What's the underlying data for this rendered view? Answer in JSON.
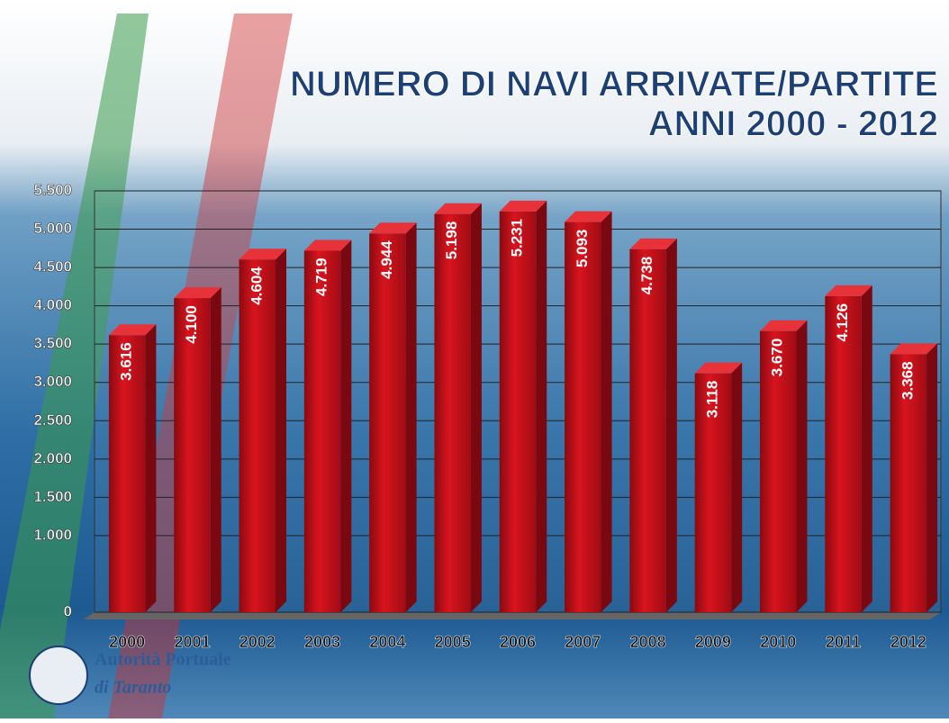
{
  "chart_data": {
    "type": "bar",
    "title": "NUMERO DI NAVI ARRIVATE/PARTITE",
    "subtitle": "ANNI 2000 - 2012",
    "categories": [
      "2000",
      "2001",
      "2002",
      "2003",
      "2004",
      "2005",
      "2006",
      "2007",
      "2008",
      "2009",
      "2010",
      "2011",
      "2012"
    ],
    "values": [
      3616,
      4100,
      4604,
      4719,
      4944,
      5198,
      5231,
      5093,
      4738,
      3118,
      3670,
      4126,
      3368
    ],
    "value_labels": [
      "3.616",
      "4.100",
      "4.604",
      "4.719",
      "4.944",
      "5.198",
      "5.231",
      "5.093",
      "4.738",
      "3.118",
      "3.670",
      "4.126",
      "3.368"
    ],
    "color": "#c8101a",
    "ylim": [
      0,
      5500
    ],
    "yticks": [
      0,
      {
        "value": 1000,
        "label": "1.000"
      },
      {
        "value": 1500,
        "label": "1.500"
      },
      {
        "value": 2000,
        "label": "2.000"
      },
      {
        "value": 2500,
        "label": "2.500"
      },
      {
        "value": 3000,
        "label": "3.000"
      },
      {
        "value": 3500,
        "label": "3.500"
      },
      {
        "value": 4000,
        "label": "4.000"
      },
      {
        "value": 4500,
        "label": "4.500"
      },
      {
        "value": 5000,
        "label": "5.000"
      },
      {
        "value": 5500,
        "label": "5.500"
      }
    ],
    "grid": true
  },
  "logo": {
    "line1": "Autorità Portuale",
    "line2": "di Taranto"
  }
}
